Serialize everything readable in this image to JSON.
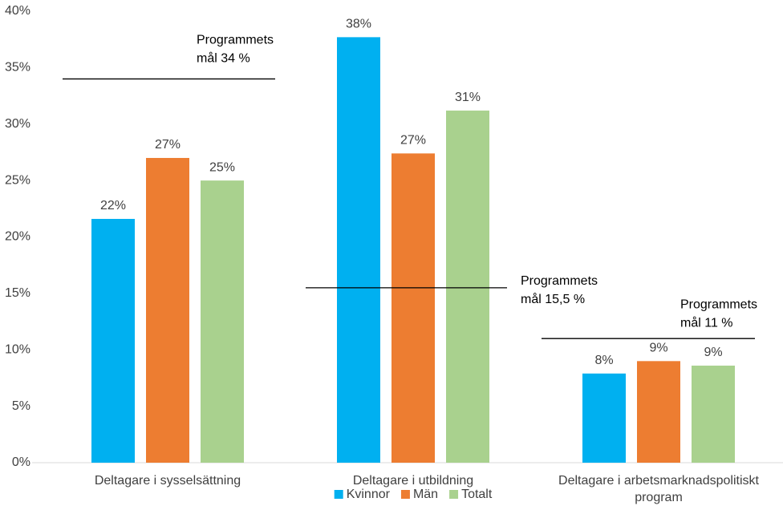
{
  "chart_data": {
    "type": "bar",
    "categories": [
      "Deltagare i sysselsättning",
      "Deltagare i utbildning",
      "Deltagare i arbetsmarknadspolitiskt program"
    ],
    "series": [
      {
        "name": "Kvinnor",
        "color": "#00b0f0",
        "values": [
          21.6,
          37.7,
          7.9
        ],
        "value_labels": [
          "22%",
          "38%",
          "8%"
        ]
      },
      {
        "name": "Män",
        "color": "#ed7d31",
        "values": [
          27.0,
          27.4,
          9.0
        ],
        "value_labels": [
          "27%",
          "27%",
          "9%"
        ]
      },
      {
        "name": "Totalt",
        "color": "#a9d18e",
        "values": [
          25.0,
          31.2,
          8.6
        ],
        "value_labels": [
          "25%",
          "31%",
          "9%"
        ]
      }
    ],
    "ylim": [
      0,
      40
    ],
    "yticks": [
      {
        "value": 0,
        "label": "0%"
      },
      {
        "value": 5,
        "label": "5%"
      },
      {
        "value": 10,
        "label": "10%"
      },
      {
        "value": 15,
        "label": "15%"
      },
      {
        "value": 20,
        "label": "20%"
      },
      {
        "value": 25,
        "label": "25%"
      },
      {
        "value": 30,
        "label": "30%"
      },
      {
        "value": 35,
        "label": "35%"
      },
      {
        "value": 40,
        "label": "40%"
      }
    ],
    "targets": [
      {
        "value": 34,
        "label": [
          "Programmets",
          "mål 34 %"
        ]
      },
      {
        "value": 15.5,
        "label": [
          "Programmets",
          "mål 15,5 %"
        ]
      },
      {
        "value": 11,
        "label": [
          "Programmets",
          "mål 11 %"
        ]
      }
    ],
    "legend": "bottom"
  }
}
